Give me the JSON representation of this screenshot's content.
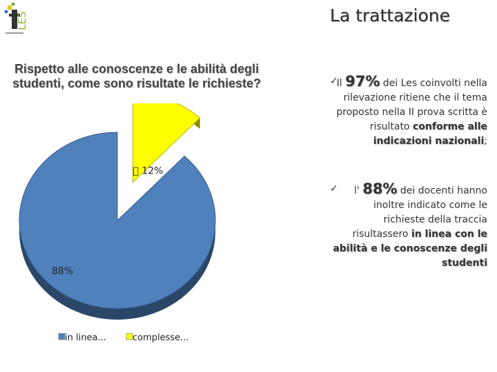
{
  "header": {
    "title": "La trattazione",
    "logo_text": "LES"
  },
  "question": {
    "line1": "Rispetto alle conoscenze e le abilità degli",
    "line2": "studenti, come sono risultate  le richieste?"
  },
  "chart_data": {
    "type": "pie",
    "title": "",
    "slices": [
      {
        "label": "in linea...",
        "value": 88,
        "data_label": "88%",
        "color": "#4f81bd"
      },
      {
        "label": "complesse...",
        "value": 12,
        "data_label": "\u0000 12%",
        "color": "#ffff00"
      }
    ],
    "legend_position": "bottom",
    "exploded": "complesse..."
  },
  "bullets": [
    {
      "check": "✓",
      "pre": "Il ",
      "highlight": "97%",
      "post": " dei Les coinvolti nella rilevazione ritiene che il tema proposto nella II prova scritta  è risultato ",
      "bold": "conforme  alle indicazioni nazionali",
      "tail": ";"
    },
    {
      "check": "✓",
      "pre": "l' ",
      "highlight": "88%",
      "post": " dei docenti hanno inoltre indicato come le richieste della traccia risultassero  ",
      "bold": "in linea con le abilità e le conoscenze degli studenti",
      "tail": ""
    }
  ]
}
